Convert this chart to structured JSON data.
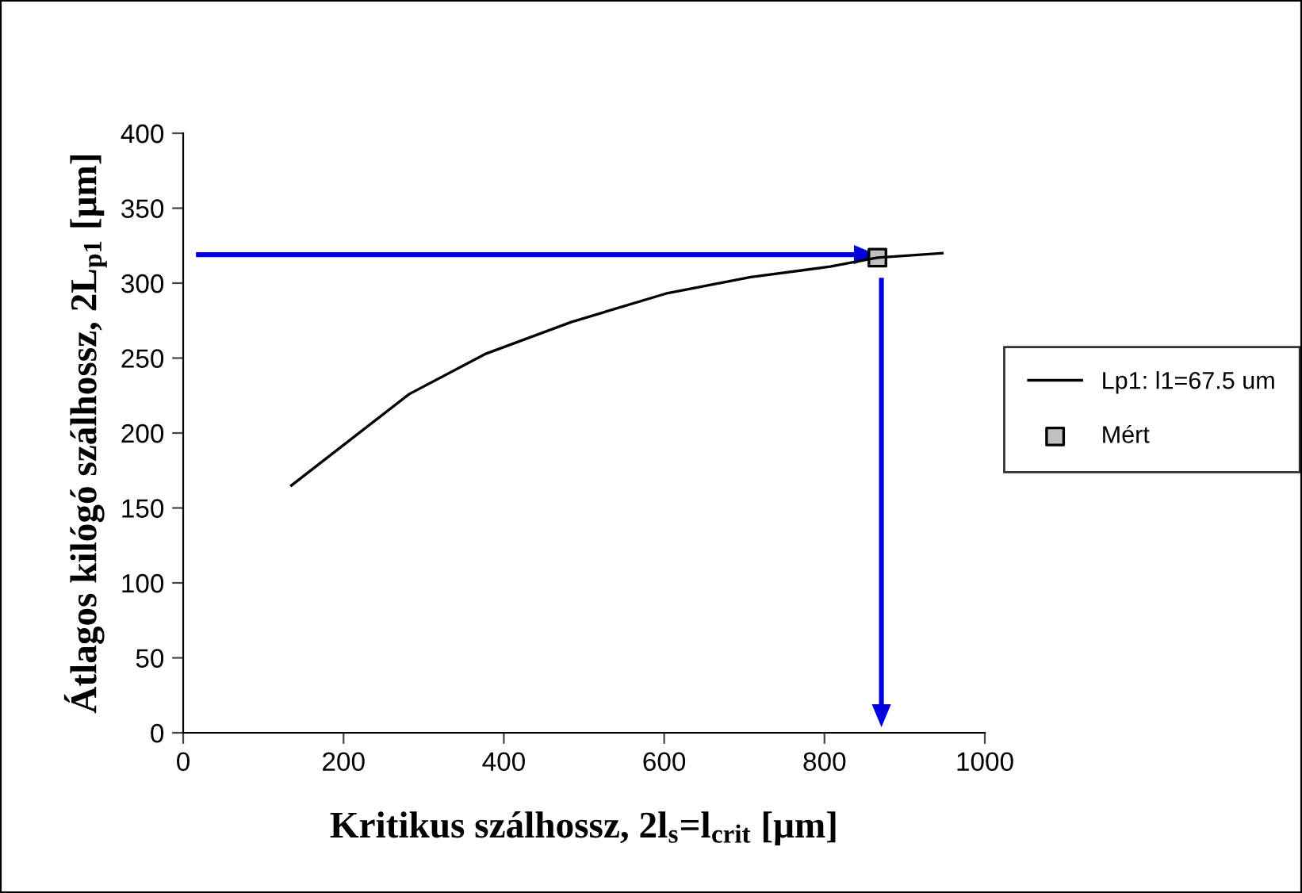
{
  "chart_data": {
    "type": "line",
    "xlabel": "Kritikus szálhossz, 2l$_{s}$=l$_{crit}$ [μm]",
    "ylabel": "Átlagos kilógó szálhossz, 2L$_{p1}$ [μm]",
    "series": [
      {
        "name": "Lp1: l1=67.5 um",
        "color": "#000000",
        "marker": "none",
        "x": [
          135,
          200,
          282,
          378,
          484,
          602,
          708,
          807,
          866,
          947
        ],
        "values": [
          165,
          192,
          226,
          253,
          274,
          293,
          304,
          311,
          317,
          320
        ]
      },
      {
        "type": "line",
        "color": "#0000dd",
        "x": [
          19,
          848
        ],
        "values": [
          319,
          319
        ]
      },
      {
        "type": "line",
        "color": "#0000dd",
        "x": [
          871,
          871
        ],
        "values": [
          302,
          13
        ]
      },
      {
        "name": "Mért",
        "type": "scatter",
        "color": "#c0c0c0",
        "marker": "square",
        "x": [
          866
        ],
        "values": [
          317
        ]
      }
    ],
    "xlim": [
      0,
      1000
    ],
    "xticks": [
      0,
      200,
      400,
      600,
      800,
      1000
    ],
    "ylim": [
      0,
      400
    ],
    "yticks": [
      0,
      50,
      100,
      150,
      200,
      250,
      300,
      350,
      400
    ],
    "grid": false,
    "legend": "right"
  }
}
